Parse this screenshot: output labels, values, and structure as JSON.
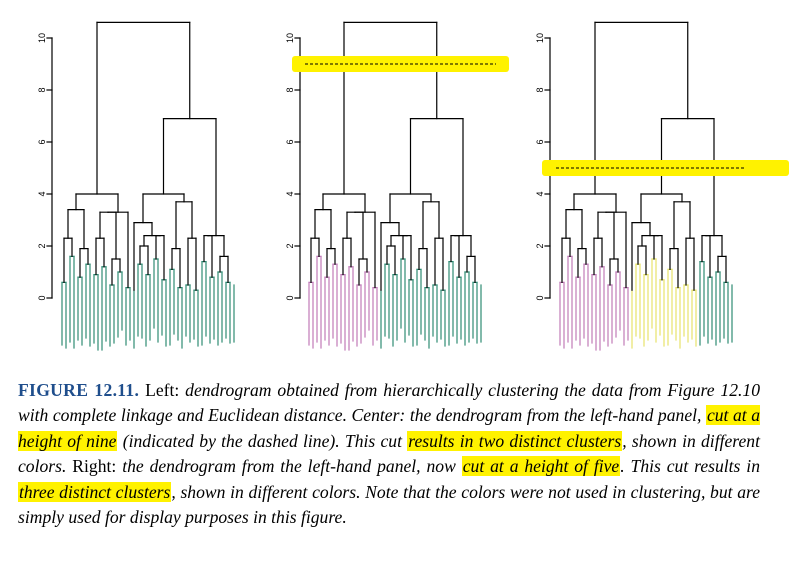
{
  "figure": {
    "panels": [
      {
        "name": "left",
        "colors": [
          "#2e8b73",
          "#2e8b73",
          "#2e8b73"
        ],
        "cut": null
      },
      {
        "name": "center",
        "colors": [
          "#c07ab8",
          "#2e8b73",
          "#2e8b73"
        ],
        "cut": 9
      },
      {
        "name": "right",
        "colors": [
          "#c07ab8",
          "#e7e36a",
          "#2e8b73"
        ],
        "cut": 5
      }
    ],
    "y_ticks": [
      "0",
      "2",
      "4",
      "6",
      "8",
      "10"
    ],
    "ylim": [
      0,
      11
    ],
    "highlight_color": "#fff200",
    "branch_color": "#000000"
  },
  "caption": {
    "label": "FIGURE 12.11.",
    "p1": " Left: ",
    "p2": "dendrogram obtained from hierarchically clustering the data from Figure 12.10 with complete linkage and Euclidean distance. Center: the dendrogram from the left-hand panel, ",
    "h1": "cut at a height of nine",
    "p3": " (indicated by the dashed line). This cut ",
    "h2": "results in two distinct clusters",
    "p4": ", shown in different colors.",
    "p5": " Right: ",
    "p6": "the dendrogram from the left-hand panel, now ",
    "h3": "cut at a height of five",
    "p7": ". This cut results in ",
    "h4": "three distinct clusters",
    "p8": ", shown in different colors. Note that the colors were not used in clustering, but are simply used for display purposes in this figure."
  }
}
